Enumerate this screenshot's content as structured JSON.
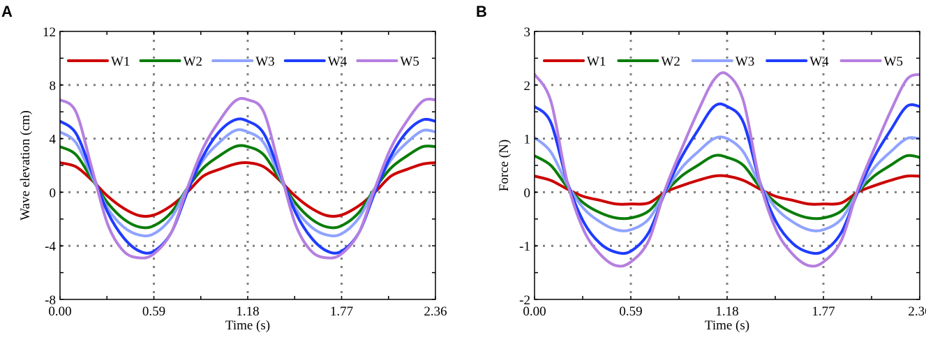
{
  "chart_data": [
    {
      "type": "line",
      "panel": "A",
      "xlabel": "Time (s)",
      "ylabel": "Wave elevation (cm)",
      "xlim": [
        0,
        2.36
      ],
      "ylim": [
        -8,
        12
      ],
      "xticks": [
        "0.00",
        "0.59",
        "1.18",
        "1.77",
        "2.36"
      ],
      "yticks": [
        "-8",
        "-4",
        "0",
        "4",
        "8",
        "12"
      ],
      "grid": "dotted at labeled ticks",
      "legend": "top, horizontal",
      "period": 1.18,
      "x": [
        0,
        0.1,
        0.2,
        0.3,
        0.4,
        0.5,
        0.59,
        0.7,
        0.8,
        0.9,
        1.0,
        1.1,
        1.18
      ],
      "series": [
        {
          "name": "W1",
          "color": "#cc0000",
          "values": [
            2.2,
            1.9,
            0.9,
            -0.3,
            -1.2,
            -1.75,
            -1.7,
            -1.0,
            0,
            1.2,
            1.7,
            2.1,
            2.2
          ]
        },
        {
          "name": "W2",
          "color": "#0a7d0a",
          "values": [
            3.4,
            2.8,
            1.0,
            -0.8,
            -2.0,
            -2.6,
            -2.5,
            -1.5,
            0.3,
            1.8,
            2.7,
            3.4,
            3.4
          ]
        },
        {
          "name": "W3",
          "color": "#8fa3ff",
          "values": [
            4.5,
            3.7,
            1.2,
            -1.2,
            -2.6,
            -3.2,
            -3.1,
            -1.9,
            0.3,
            2.4,
            3.7,
            4.6,
            4.5
          ]
        },
        {
          "name": "W4",
          "color": "#1f3cff",
          "values": [
            5.3,
            4.4,
            1.5,
            -1.5,
            -3.4,
            -4.4,
            -4.4,
            -3.0,
            0.0,
            2.7,
            4.5,
            5.4,
            5.3
          ]
        },
        {
          "name": "W5",
          "color": "#b57fe0",
          "values": [
            6.9,
            6.0,
            1.8,
            -2.4,
            -4.4,
            -4.9,
            -4.6,
            -3.0,
            0.3,
            3.3,
            5.3,
            6.8,
            6.9
          ]
        }
      ]
    },
    {
      "type": "line",
      "panel": "B",
      "xlabel": "Time (s)",
      "ylabel": "Force (N)",
      "xlim": [
        0,
        2.36
      ],
      "ylim": [
        -2,
        3
      ],
      "xticks": [
        "0.00",
        "0.59",
        "1.18",
        "1.77",
        "2.36"
      ],
      "yticks": [
        "-2",
        "-1",
        "0",
        "1",
        "2",
        "3"
      ],
      "grid": "dotted at labeled ticks",
      "legend": "top, horizontal",
      "period": 1.18,
      "x": [
        0,
        0.1,
        0.2,
        0.3,
        0.4,
        0.5,
        0.59,
        0.7,
        0.8,
        0.9,
        1.0,
        1.1,
        1.18
      ],
      "series": [
        {
          "name": "W1",
          "color": "#cc0000",
          "values": [
            0.3,
            0.22,
            0.06,
            -0.08,
            -0.15,
            -0.22,
            -0.22,
            -0.2,
            0,
            0.12,
            0.22,
            0.3,
            0.3
          ]
        },
        {
          "name": "W2",
          "color": "#0a7d0a",
          "values": [
            0.68,
            0.5,
            0.1,
            -0.2,
            -0.38,
            -0.48,
            -0.48,
            -0.35,
            0,
            0.3,
            0.5,
            0.68,
            0.65
          ]
        },
        {
          "name": "W3",
          "color": "#8fa3ff",
          "values": [
            1.02,
            0.75,
            0.15,
            -0.3,
            -0.55,
            -0.7,
            -0.7,
            -0.5,
            0,
            0.45,
            0.75,
            1.0,
            1.0
          ]
        },
        {
          "name": "W4",
          "color": "#1f3cff",
          "values": [
            1.6,
            1.3,
            0.2,
            -0.55,
            -0.95,
            -1.12,
            -1.1,
            -0.75,
            0,
            0.65,
            1.15,
            1.6,
            1.6
          ]
        },
        {
          "name": "W5",
          "color": "#b57fe0",
          "values": [
            2.2,
            1.7,
            0.2,
            -0.7,
            -1.15,
            -1.37,
            -1.3,
            -0.9,
            0.05,
            0.8,
            1.5,
            2.1,
            2.2
          ]
        }
      ]
    }
  ]
}
